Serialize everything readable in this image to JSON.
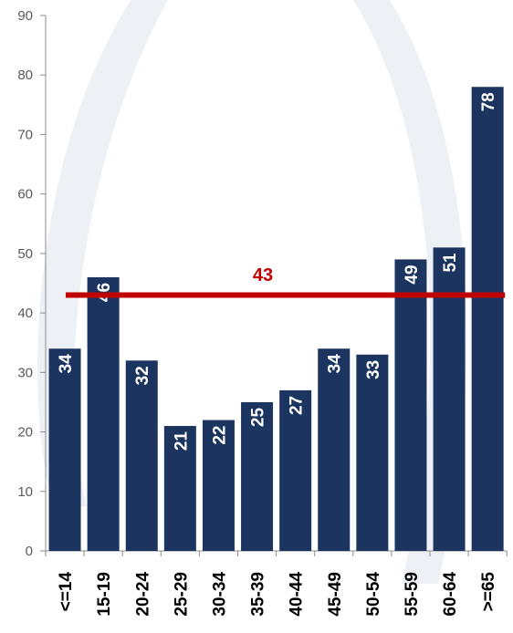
{
  "chart_data": {
    "type": "bar",
    "title": "",
    "xlabel": "",
    "ylabel": "",
    "categories": [
      "<=14",
      "15-19",
      "20-24",
      "25-29",
      "30-34",
      "35-39",
      "40-44",
      "45-49",
      "50-54",
      "55-59",
      "60-64",
      ">=65"
    ],
    "values": [
      34,
      46,
      32,
      21,
      22,
      25,
      27,
      34,
      33,
      49,
      51,
      78
    ],
    "value_labels": [
      "34",
      "46",
      "32",
      "21",
      "22",
      "25",
      "27",
      "34",
      "33",
      "49",
      "51",
      "78"
    ],
    "ylim": [
      0,
      90
    ],
    "yticks": [
      0,
      10,
      20,
      30,
      40,
      50,
      60,
      70,
      80,
      90
    ],
    "ytick_labels": [
      "0",
      "10",
      "20",
      "30",
      "40",
      "50",
      "60",
      "70",
      "80",
      "90"
    ],
    "grid": false,
    "reference_line": {
      "value": 43,
      "label": "43"
    },
    "colors": {
      "bar": "#1c3560",
      "reference_line": "#c00000",
      "watermark": "#e8edf4"
    }
  }
}
